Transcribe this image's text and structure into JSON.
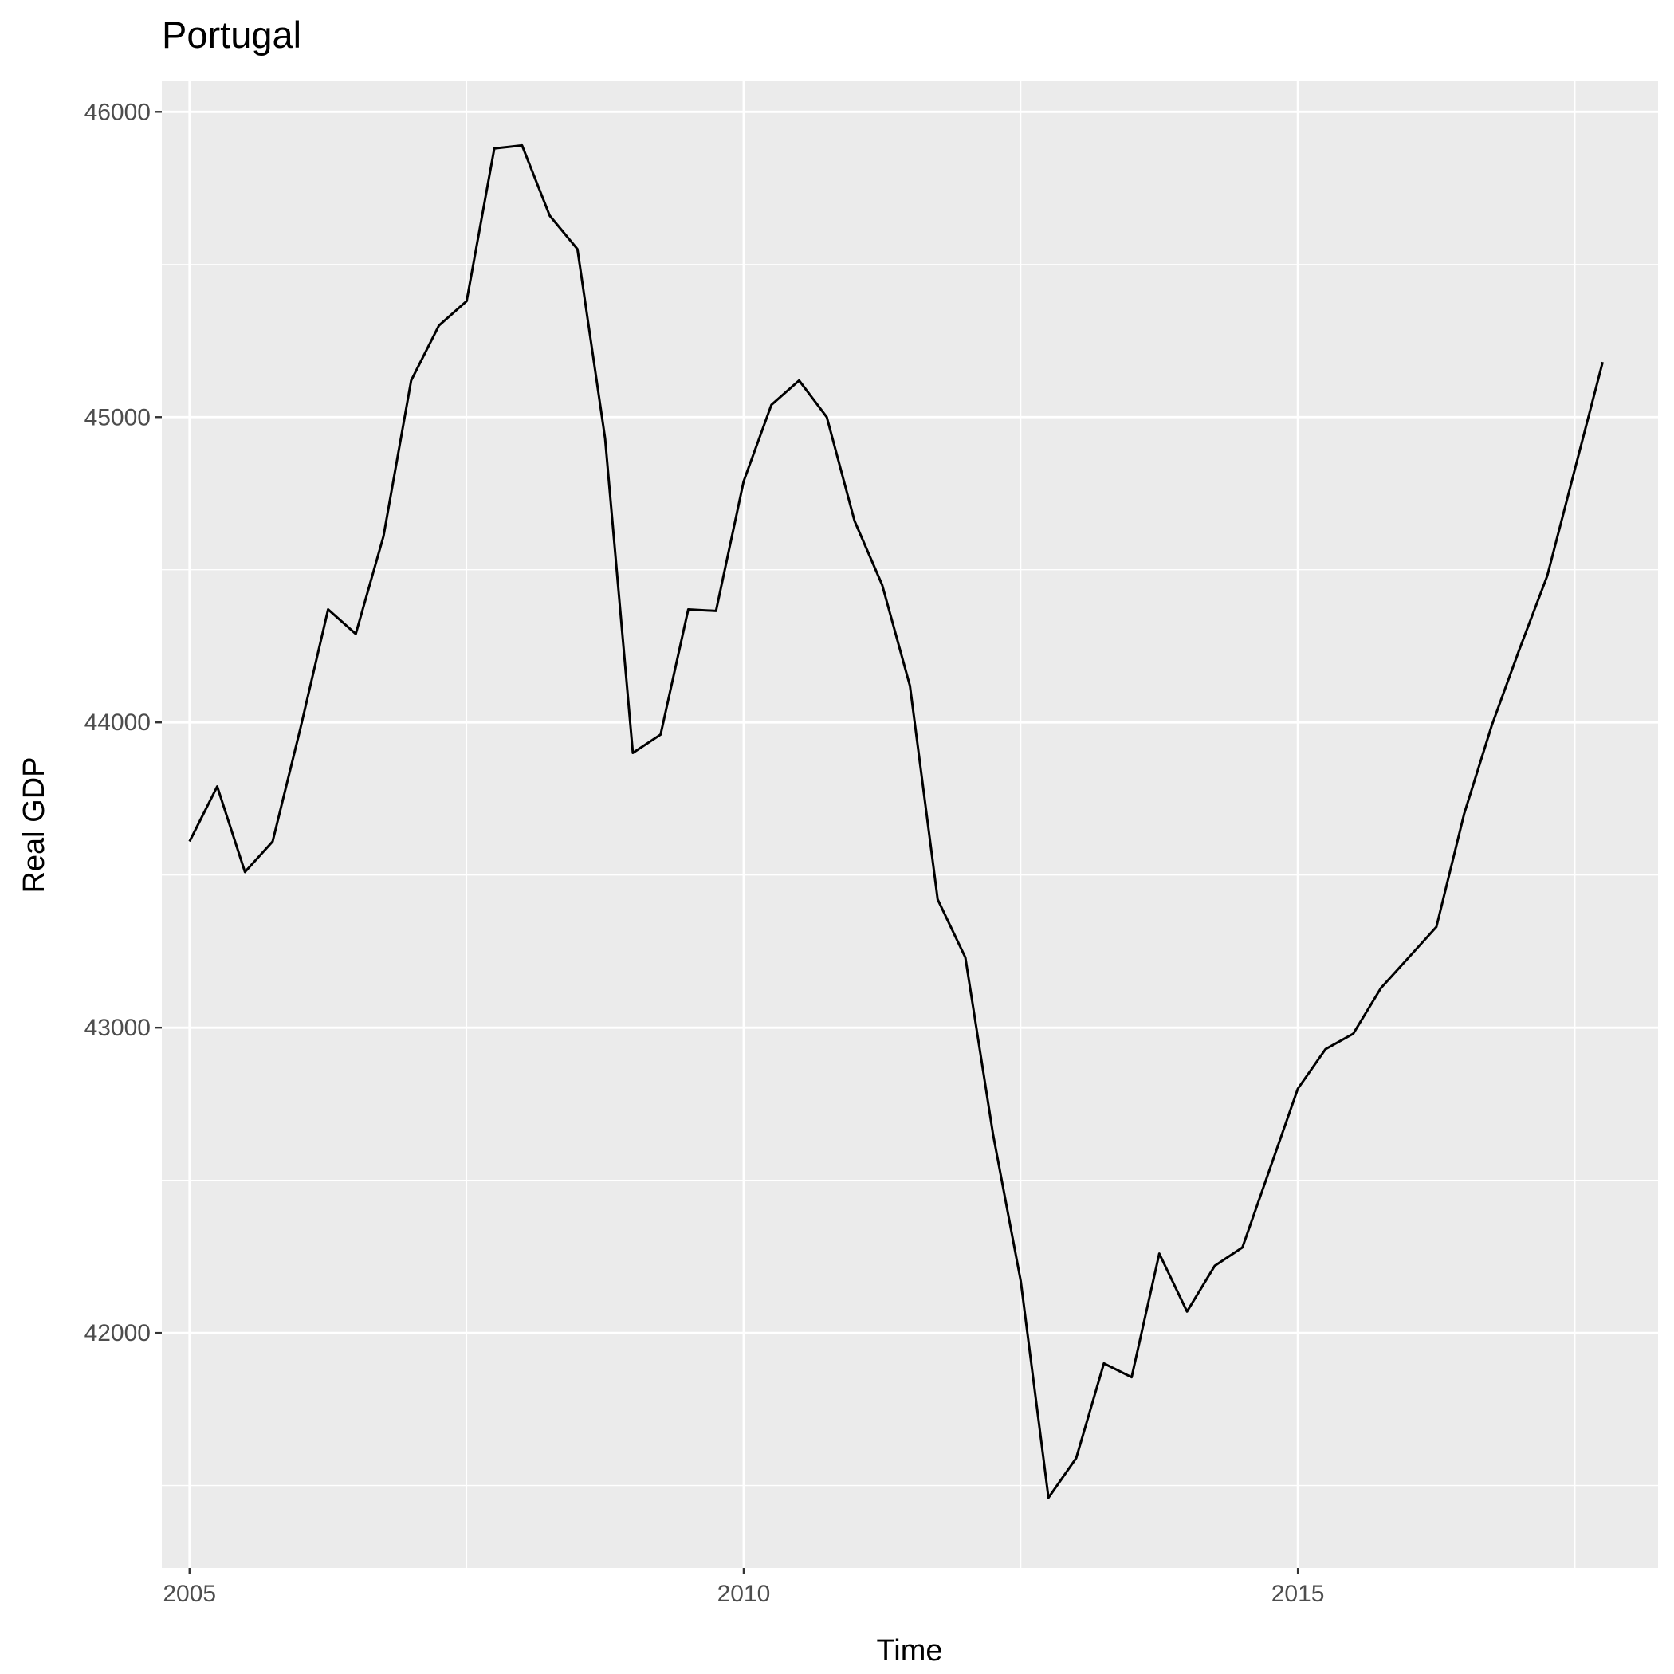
{
  "chart_data": {
    "type": "line",
    "title": "Portugal",
    "xlabel": "Time",
    "ylabel": "Real GDP",
    "xlim": [
      2004.75,
      2018.25
    ],
    "ylim": [
      41230,
      46100
    ],
    "x_ticks": [
      2005,
      2010,
      2015
    ],
    "x_tick_labels": [
      "2005",
      "2010",
      "2015"
    ],
    "x_minor_ticks": [
      2007.5,
      2012.5,
      2017.5
    ],
    "y_ticks": [
      42000,
      43000,
      44000,
      45000,
      46000
    ],
    "y_tick_labels": [
      "42000",
      "43000",
      "44000",
      "45000",
      "46000"
    ],
    "y_minor_ticks": [
      41500,
      42500,
      43500,
      44500,
      45500
    ],
    "grid": true,
    "legend": "none",
    "colors": {
      "panel": "#ebebeb",
      "grid": "#ffffff",
      "line": "#000000",
      "text": "#4d4d4d"
    },
    "series": [
      {
        "x": [
          2005.0,
          2005.25,
          2005.5,
          2005.75,
          2006.0,
          2006.25,
          2006.5,
          2006.75,
          2007.0,
          2007.25,
          2007.5,
          2007.75,
          2008.0,
          2008.25,
          2008.5,
          2008.75,
          2009.0,
          2009.25,
          2009.5,
          2009.75,
          2010.0,
          2010.25,
          2010.5,
          2010.75,
          2011.0,
          2011.25,
          2011.5,
          2011.75,
          2012.0,
          2012.25,
          2012.5,
          2012.75,
          2013.0,
          2013.25,
          2013.5,
          2013.75,
          2014.0,
          2014.25,
          2014.5,
          2014.75,
          2015.0,
          2015.25,
          2015.5,
          2015.75,
          2016.0,
          2016.25,
          2016.5,
          2016.75,
          2017.0,
          2017.25,
          2017.5,
          2017.75
        ],
        "values": [
          43610,
          43790,
          43510,
          43610,
          43980,
          44370,
          44290,
          44610,
          45120,
          45300,
          45380,
          45880,
          45890,
          45660,
          45550,
          44930,
          43900,
          43960,
          44370,
          44365,
          44790,
          45040,
          45120,
          45000,
          44660,
          44450,
          44120,
          43420,
          43230,
          42650,
          42170,
          41460,
          41590,
          41900,
          41855,
          42260,
          42070,
          42220,
          42280,
          42540,
          42800,
          42930,
          42980,
          43130,
          43230,
          43330,
          43700,
          43990,
          44240,
          44480,
          44830,
          45180
        ]
      }
    ]
  }
}
